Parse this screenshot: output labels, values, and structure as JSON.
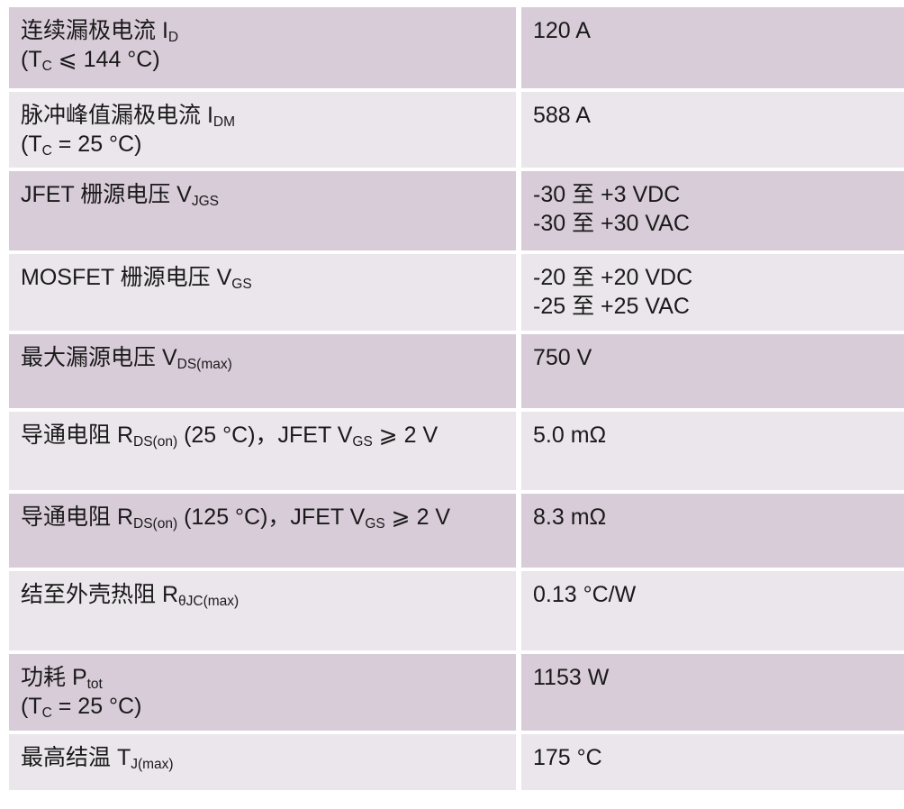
{
  "colors": {
    "row_dark": "#d8ccd9",
    "row_light": "#ebe5ec",
    "text": "#1a1a1a",
    "background": "#ffffff"
  },
  "table": {
    "description": "device-specification-table",
    "rows": [
      {
        "name": "continuous-drain-current",
        "label_lines": [
          [
            {
              "t": "连续漏极电流 I"
            },
            {
              "s": "D"
            }
          ],
          [
            {
              "t": "(T"
            },
            {
              "s": "C"
            },
            {
              "t": " ⩽ 144 °C)"
            }
          ]
        ],
        "value_lines": [
          "120 A"
        ]
      },
      {
        "name": "pulsed-peak-drain-current",
        "label_lines": [
          [
            {
              "t": "脉冲峰值漏极电流 I"
            },
            {
              "s": "DM"
            }
          ],
          [
            {
              "t": "(T"
            },
            {
              "s": "C"
            },
            {
              "t": " = 25 °C)"
            }
          ]
        ],
        "value_lines": [
          "588 A"
        ]
      },
      {
        "name": "jfet-gate-source-voltage",
        "label_lines": [
          [
            {
              "t": "JFET 栅源电压 V"
            },
            {
              "s": "JGS"
            }
          ]
        ],
        "value_lines": [
          "-30 至 +3 VDC",
          "-30 至 +30 VAC"
        ]
      },
      {
        "name": "mosfet-gate-source-voltage",
        "label_lines": [
          [
            {
              "t": "MOSFET 栅源电压 V"
            },
            {
              "s": "GS"
            }
          ]
        ],
        "value_lines": [
          "-20 至 +20 VDC",
          "-25 至 +25 VAC"
        ]
      },
      {
        "name": "max-drain-source-voltage",
        "label_lines": [
          [
            {
              "t": "最大漏源电压 V"
            },
            {
              "s": "DS(max)"
            }
          ]
        ],
        "value_lines": [
          "750 V"
        ]
      },
      {
        "name": "on-resistance-25c",
        "label_lines": [
          [
            {
              "t": "导通电阻 R"
            },
            {
              "s": "DS(on)"
            },
            {
              "t": " (25 °C)，JFET V"
            },
            {
              "s": "GS"
            },
            {
              "t": " ⩾ 2 V"
            }
          ]
        ],
        "value_lines": [
          "5.0 mΩ"
        ]
      },
      {
        "name": "on-resistance-125c",
        "label_lines": [
          [
            {
              "t": "导通电阻 R"
            },
            {
              "s": "DS(on)"
            },
            {
              "t": " (125 °C)，JFET V"
            },
            {
              "s": "GS"
            },
            {
              "t": " ⩾ 2 V"
            }
          ]
        ],
        "value_lines": [
          "8.3 mΩ"
        ]
      },
      {
        "name": "junction-to-case-thermal-resistance",
        "label_lines": [
          [
            {
              "t": "结至外壳热阻 R"
            },
            {
              "s": "θJC(max)"
            }
          ]
        ],
        "value_lines": [
          "0.13 °C/W"
        ]
      },
      {
        "name": "power-dissipation",
        "label_lines": [
          [
            {
              "t": "功耗 P"
            },
            {
              "s": "tot"
            }
          ],
          [
            {
              "t": "(T"
            },
            {
              "s": "C"
            },
            {
              "t": " = 25 °C)"
            }
          ]
        ],
        "value_lines": [
          "1153 W"
        ]
      },
      {
        "name": "max-junction-temperature",
        "label_lines": [
          [
            {
              "t": "最高结温 T"
            },
            {
              "s": "J(max)"
            }
          ]
        ],
        "value_lines": [
          "175 °C"
        ]
      }
    ]
  }
}
